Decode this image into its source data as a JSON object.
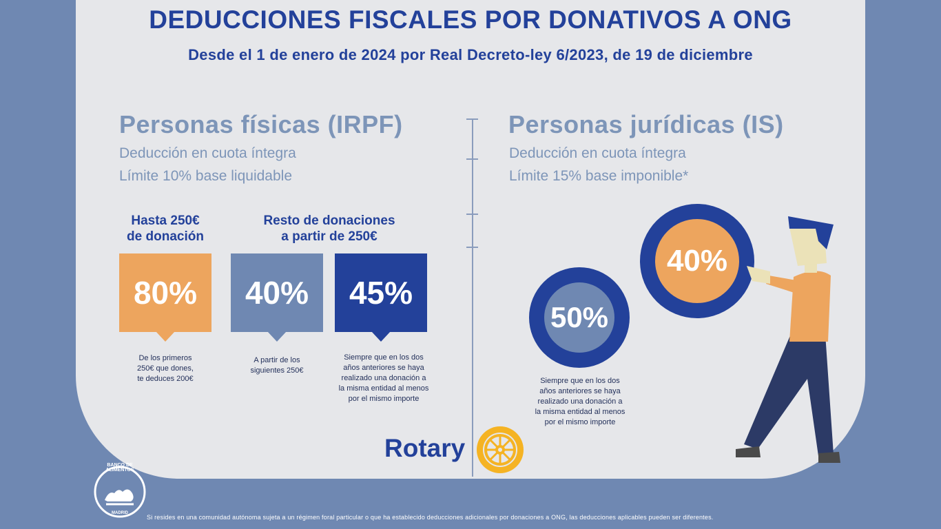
{
  "header": {
    "title": "DEDUCCIONES FISCALES POR DONATIVOS A ONG",
    "subtitle": "Desde el 1 de enero de 2024 por Real Decreto-ley 6/2023, de 19 de diciembre"
  },
  "irpf": {
    "heading": "Personas físicas (IRPF)",
    "line1": "Deducción en cuota íntegra",
    "line2": "Límite 10% base liquidable",
    "col1_line1": "Hasta 250€",
    "col1_line2": "de donación",
    "col2_line1": "Resto de donaciones",
    "col2_line2": "a partir de 250€",
    "box1": {
      "value": "80%",
      "color": "#eda55e",
      "note": [
        "De los primeros",
        "250€ que dones,",
        "te deduces 200€"
      ]
    },
    "box2": {
      "value": "40%",
      "color": "#6f88b2",
      "note": [
        "A partir de los",
        "siguientes 250€"
      ]
    },
    "box3": {
      "value": "45%",
      "color": "#23419a",
      "note": [
        "Siempre que en los dos",
        "años anteriores se haya",
        "realizado una donación a",
        "la misma entidad al menos",
        "por el mismo importe"
      ]
    }
  },
  "is": {
    "heading": "Personas jurídicas (IS)",
    "line1": "Deducción en cuota íntegra",
    "line2": "Límite 15% base imponible*",
    "ring_small": "50%",
    "ring_big": "40%",
    "note": [
      "Siempre que en los dos",
      "años anteriores se haya",
      "realizado una donación a",
      "la misma entidad al menos",
      "por el mismo importe"
    ]
  },
  "logos": {
    "rotary": "Rotary",
    "banco_ring_text": "BANCO DE ALIMENTOS",
    "banco_city": "MADRID"
  },
  "footer": "Si resides en una comunidad autónoma sujeta a un régimen foral particular o que ha establecido deducciones adicionales por donaciones a ONG, las deducciones aplicables pueden ser diferentes.",
  "colors": {
    "navy": "#23419a",
    "slate": "#6f88b2",
    "orange": "#eda55e",
    "panel": "#e6e7ea",
    "gold": "#f5b323"
  }
}
